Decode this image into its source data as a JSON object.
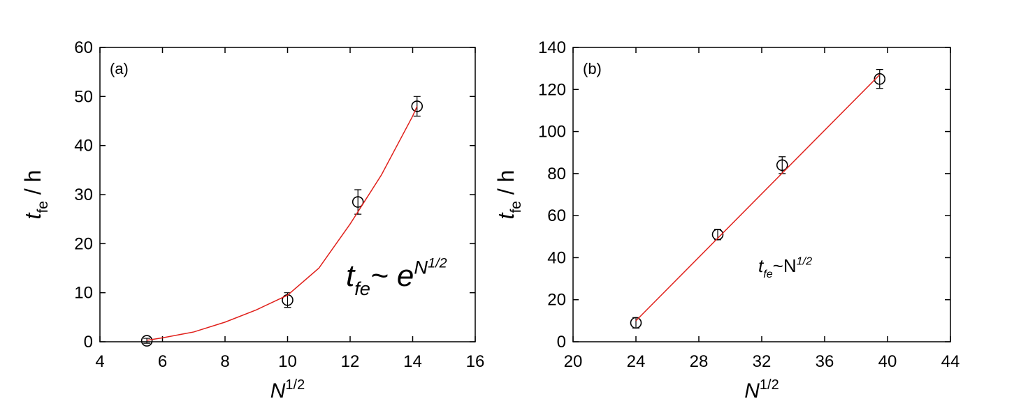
{
  "chart_data": [
    {
      "type": "scatter",
      "panel_label": "(a)",
      "xlabel": {
        "main": "N",
        "sup": "1/2"
      },
      "ylabel": {
        "main": "t",
        "sub": "fe",
        "rest": " / h"
      },
      "equation": {
        "main": "t",
        "sub": "fe",
        "mid": "~ e",
        "base": "N",
        "sup": "1/2"
      },
      "xlim": [
        4,
        16
      ],
      "xticks": [
        4,
        6,
        8,
        10,
        12,
        14,
        16
      ],
      "ylim": [
        0,
        60
      ],
      "yticks": [
        0,
        10,
        20,
        30,
        40,
        50,
        60
      ],
      "series": [
        {
          "kind": "points",
          "color": "#000000",
          "x": [
            5.5,
            10,
            12.25,
            14.14
          ],
          "values": [
            0.2,
            8.5,
            28.5,
            48
          ],
          "errors": [
            0.5,
            1.5,
            2.5,
            2
          ]
        },
        {
          "kind": "line",
          "color": "#e0201b",
          "x": [
            5.5,
            6,
            7,
            8,
            9,
            10,
            11,
            12,
            13,
            14,
            14.14
          ],
          "values": [
            0.3,
            0.8,
            2,
            4,
            6.5,
            9.5,
            15,
            24,
            34,
            46,
            48
          ]
        }
      ]
    },
    {
      "type": "scatter",
      "panel_label": "(b)",
      "xlabel": {
        "main": "N",
        "sup": "1/2"
      },
      "ylabel": {
        "main": "t",
        "sub": "fe",
        "rest": " / h"
      },
      "equation": {
        "main": "t",
        "sub": "fe",
        "mid": "~N",
        "sup": "1/2"
      },
      "xlim": [
        20,
        44
      ],
      "xticks": [
        20,
        24,
        28,
        32,
        36,
        40,
        44
      ],
      "ylim": [
        0,
        140
      ],
      "yticks": [
        0,
        20,
        40,
        60,
        80,
        100,
        120,
        140
      ],
      "series": [
        {
          "kind": "points",
          "color": "#000000",
          "x": [
            24,
            29.2,
            33.3,
            39.5
          ],
          "values": [
            9,
            51,
            84,
            125
          ],
          "errors": [
            2.5,
            2.5,
            4,
            4.5
          ]
        },
        {
          "kind": "line",
          "color": "#e0201b",
          "x": [
            24,
            39.5
          ],
          "values": [
            10,
            127
          ]
        }
      ]
    }
  ]
}
